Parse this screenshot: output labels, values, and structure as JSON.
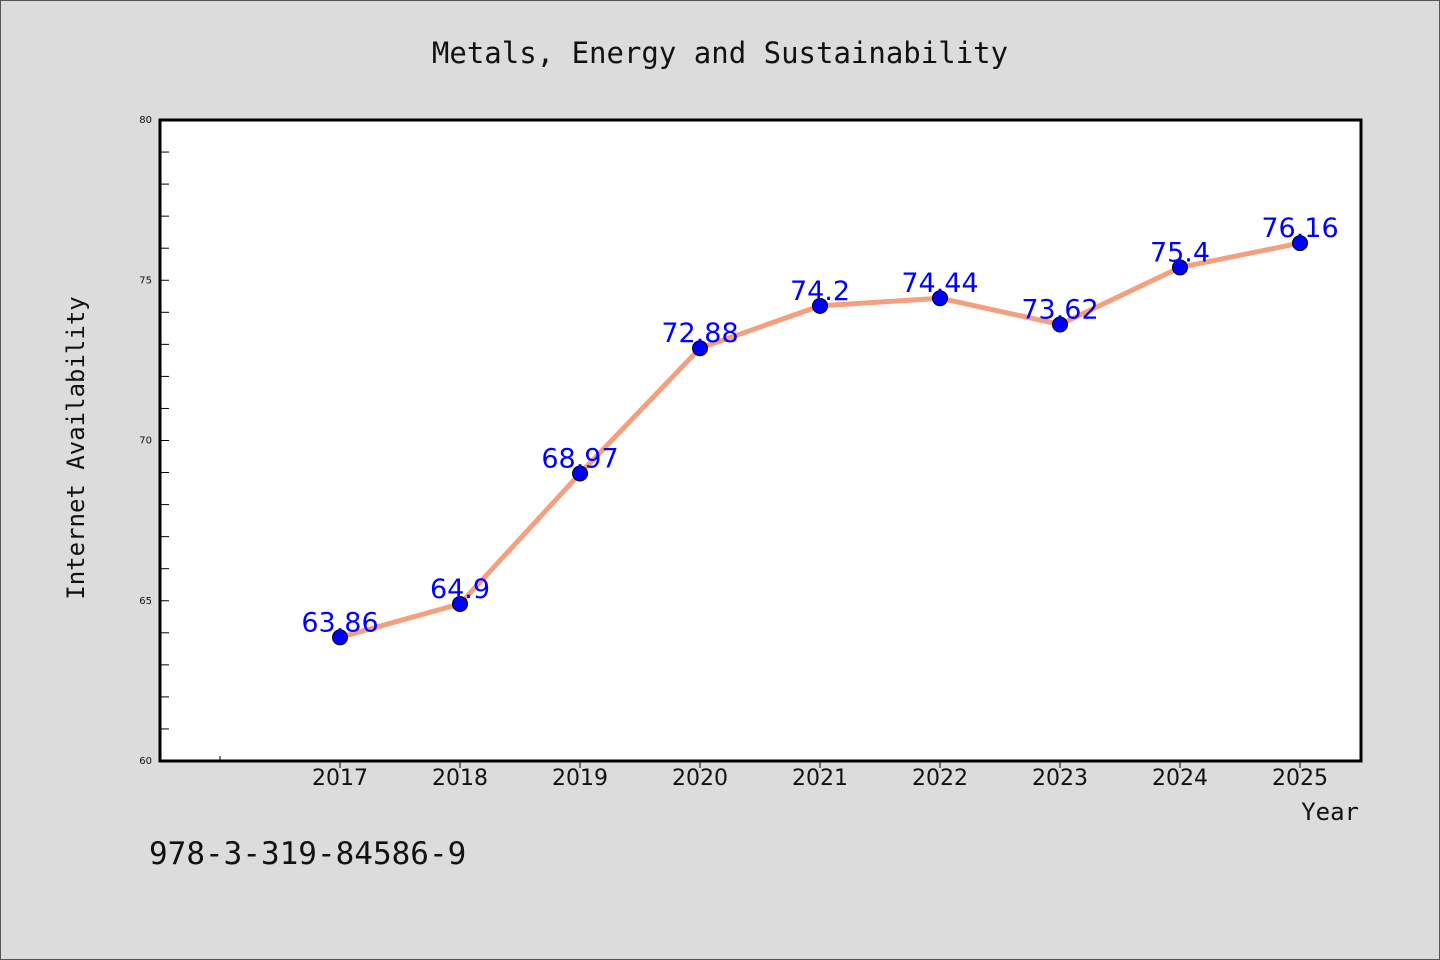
{
  "chart_data": {
    "type": "line",
    "title": "Metals, Energy and Sustainability",
    "xlabel": "Year",
    "ylabel": "Internet Availability",
    "x": [
      "2017",
      "2018",
      "2019",
      "2020",
      "2021",
      "2022",
      "2023",
      "2024",
      "2025"
    ],
    "series": [
      {
        "values": [
          63.86,
          64.9,
          68.97,
          72.88,
          74.2,
          74.44,
          73.62,
          75.4,
          76.16
        ],
        "labels": [
          "63.86",
          "64.9",
          "68.97",
          "72.88",
          "74.2",
          "74.44",
          "73.62",
          "75.4",
          "76.16"
        ]
      }
    ],
    "ylim": [
      60,
      80
    ],
    "yticks": [
      "60",
      "65",
      "70",
      "75",
      "80"
    ],
    "grid": false,
    "legend": "none",
    "colors": {
      "line": "#f4a07f",
      "marker": "#0000ff",
      "data_label": "#0000ff",
      "plot_background": "#ffffff",
      "page_background": "#dcdcdc"
    }
  },
  "footer": {
    "isbn": "978-3-319-84586-9"
  }
}
